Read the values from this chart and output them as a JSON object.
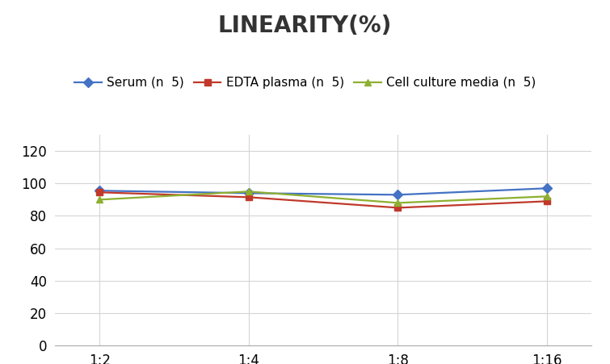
{
  "title": "LINEARITY(%)",
  "x_labels": [
    "1:2",
    "1:4",
    "1:8",
    "1:16"
  ],
  "x_positions": [
    0,
    1,
    2,
    3
  ],
  "series": [
    {
      "label": "Serum (n 5)",
      "values": [
        95.5,
        94.0,
        93.0,
        97.0
      ],
      "color": "#4472C4",
      "marker": "D",
      "marker_size": 6
    },
    {
      "label": "EDTA plasma (n 5)",
      "values": [
        94.5,
        91.5,
        85.0,
        89.0
      ],
      "color": "#C0392B",
      "marker": "s",
      "marker_size": 6
    },
    {
      "label": "Cell culture media (n 5)",
      "values": [
        90.0,
        95.0,
        88.0,
        92.0
      ],
      "color": "#8DB030",
      "marker": "^",
      "marker_size": 6
    }
  ],
  "ylim": [
    0,
    130
  ],
  "yticks": [
    0,
    20,
    40,
    60,
    80,
    100,
    120
  ],
  "title_fontsize": 20,
  "legend_fontsize": 11,
  "tick_fontsize": 12,
  "background_color": "#ffffff",
  "grid_color": "#d5d5d5",
  "line_width": 1.6,
  "figure_width": 7.55,
  "figure_height": 4.51,
  "dpi": 100
}
